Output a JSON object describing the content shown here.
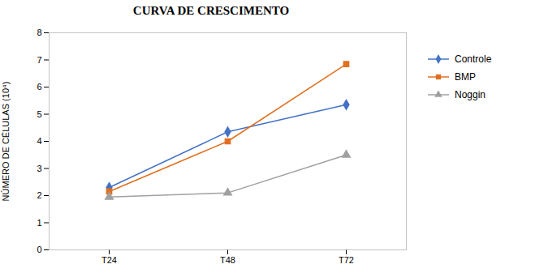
{
  "chart_data": {
    "type": "line",
    "title": "CURVA DE CRESCIMENTO",
    "ylabel": "NÚMERO DE CÉLULAS (10⁴)",
    "categories": [
      "T24",
      "T48",
      "T72"
    ],
    "series": [
      {
        "name": "Controle",
        "color": "#4472C4",
        "marker": "diamond",
        "values": [
          2.3,
          4.35,
          5.35
        ]
      },
      {
        "name": "BMP",
        "color": "#E07020",
        "marker": "square",
        "values": [
          2.15,
          4.0,
          6.85
        ]
      },
      {
        "name": "Noggin",
        "color": "#A0A0A0",
        "marker": "triangle",
        "values": [
          1.95,
          2.1,
          3.5
        ]
      }
    ],
    "ylim": [
      0,
      8
    ],
    "yticks": [
      0,
      1,
      2,
      3,
      4,
      5,
      6,
      7,
      8
    ],
    "grid": false,
    "legend": "right"
  }
}
